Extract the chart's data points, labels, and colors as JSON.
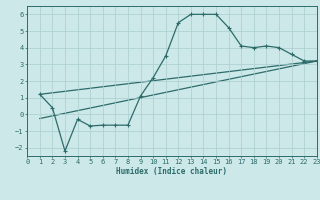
{
  "xlabel": "Humidex (Indice chaleur)",
  "bg_color": "#cce8e8",
  "line_color": "#2d6b6b",
  "grid_color": "#aacece",
  "xlim": [
    0,
    23
  ],
  "ylim": [
    -2.5,
    6.5
  ],
  "xticks": [
    0,
    1,
    2,
    3,
    4,
    5,
    6,
    7,
    8,
    9,
    10,
    11,
    12,
    13,
    14,
    15,
    16,
    17,
    18,
    19,
    20,
    21,
    22,
    23
  ],
  "yticks": [
    -2,
    -1,
    0,
    1,
    2,
    3,
    4,
    5,
    6
  ],
  "main_curve_x": [
    1,
    2,
    3,
    4,
    5,
    6,
    7,
    8,
    9,
    10,
    11,
    12,
    13,
    14,
    15,
    16,
    17,
    18,
    19,
    20,
    21,
    22,
    23
  ],
  "main_curve_y": [
    1.2,
    0.4,
    -2.2,
    -0.3,
    -0.7,
    -0.65,
    -0.65,
    -0.65,
    1.1,
    2.2,
    3.5,
    5.5,
    6.0,
    6.0,
    6.0,
    5.2,
    4.1,
    4.0,
    4.1,
    4.0,
    3.6,
    3.2,
    3.2
  ],
  "trend1_x": [
    1,
    23
  ],
  "trend1_y": [
    1.2,
    3.2
  ],
  "trend2_x": [
    1,
    23
  ],
  "trend2_y": [
    -0.25,
    3.2
  ],
  "xlabel_fontsize": 5.5,
  "tick_fontsize": 5,
  "lw": 0.9,
  "marker_size": 2.5,
  "marker_lw": 0.8
}
